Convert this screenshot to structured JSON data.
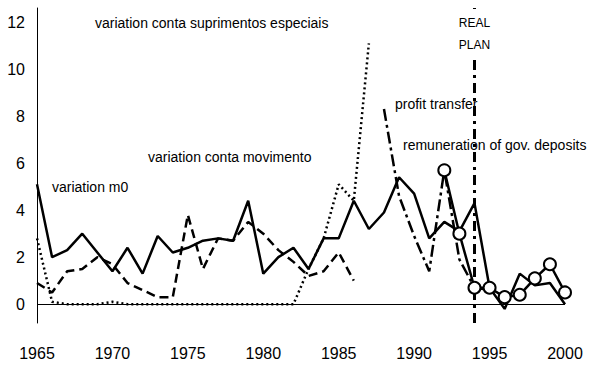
{
  "chart_data": {
    "type": "line",
    "xlim": [
      1965,
      2000
    ],
    "xticks": [
      1965,
      1970,
      1975,
      1980,
      1985,
      1990,
      1995,
      2000
    ],
    "ylim": [
      -0.8,
      12.6
    ],
    "yticks": [
      0,
      2,
      4,
      6,
      8,
      10,
      12
    ],
    "grid": false,
    "series": [
      {
        "name": "variation m0",
        "color": "#000000",
        "line_style": "solid",
        "marker": "none",
        "x": [
          1965,
          1966,
          1967,
          1968,
          1969,
          1970,
          1971,
          1972,
          1973,
          1974,
          1975,
          1976,
          1977,
          1978,
          1979,
          1980,
          1981,
          1982,
          1983,
          1984,
          1985,
          1986,
          1987,
          1988,
          1989,
          1990,
          1991,
          1992,
          1993,
          1994,
          1995,
          1996,
          1997,
          1998,
          1999,
          2000
        ],
        "values": [
          5.1,
          2.0,
          2.3,
          3.0,
          2.2,
          1.4,
          2.4,
          1.3,
          2.9,
          2.2,
          2.4,
          2.7,
          2.8,
          2.7,
          4.4,
          1.3,
          2.0,
          2.4,
          1.5,
          2.8,
          2.8,
          4.4,
          3.2,
          3.9,
          5.4,
          4.7,
          2.8,
          3.5,
          3.1,
          4.3,
          0.7,
          -0.2,
          1.3,
          0.8,
          0.9,
          0.0
        ]
      },
      {
        "name": "variation conta movimento",
        "color": "#000000",
        "line_style": "dashed",
        "marker": "none",
        "x": [
          1965,
          1966,
          1967,
          1968,
          1969,
          1970,
          1971,
          1972,
          1973,
          1974,
          1975,
          1976,
          1977,
          1978,
          1979,
          1980,
          1981,
          1982,
          1983,
          1984,
          1985,
          1986
        ],
        "values": [
          0.9,
          0.5,
          1.4,
          1.5,
          2.0,
          1.7,
          0.9,
          0.6,
          0.3,
          0.3,
          3.8,
          1.5,
          2.8,
          2.7,
          3.5,
          3.0,
          2.3,
          1.8,
          1.2,
          1.4,
          2.2,
          1.0
        ]
      },
      {
        "name": "variation conta suprimentos especiais",
        "color": "#000000",
        "line_style": "dotted",
        "marker": "none",
        "x": [
          1965,
          1966,
          1967,
          1968,
          1969,
          1970,
          1971,
          1972,
          1973,
          1974,
          1975,
          1976,
          1977,
          1978,
          1979,
          1980,
          1981,
          1982,
          1983,
          1984,
          1985,
          1986,
          1987
        ],
        "values": [
          2.8,
          0.1,
          0.0,
          0.0,
          0.0,
          0.1,
          0.0,
          0.0,
          0.0,
          0.0,
          0.0,
          0.0,
          0.0,
          0.0,
          0.0,
          0.0,
          0.0,
          0.0,
          1.5,
          2.8,
          5.1,
          4.4,
          11.1
        ]
      },
      {
        "name": "profit transfer",
        "color": "#000000",
        "line_style": "dashdot",
        "marker": "none",
        "x": [
          1988,
          1989,
          1990,
          1991,
          1992,
          1993,
          1994,
          1995
        ],
        "values": [
          8.3,
          4.6,
          2.9,
          1.4,
          5.7,
          1.9,
          0.7,
          0.6
        ]
      },
      {
        "name": "remuneration of gov. deposits",
        "color": "#000000",
        "line_style": "solid",
        "marker": "circle",
        "x": [
          1992,
          1993,
          1994,
          1995,
          1996,
          1997,
          1998,
          1999,
          2000
        ],
        "values": [
          5.7,
          3.0,
          0.7,
          0.7,
          0.3,
          0.4,
          1.1,
          1.7,
          0.5
        ]
      }
    ],
    "annotations": [
      {
        "text": "REAL\nPLAN",
        "x": 1994
      }
    ]
  }
}
